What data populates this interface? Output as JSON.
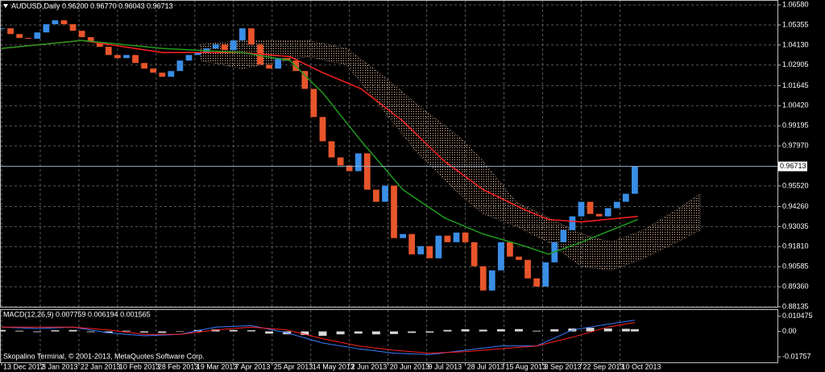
{
  "chart_data": [
    {
      "type": "candlestick",
      "title": "AUDUSD,Daily  0.96200 0.96770 0.96043 0.96713",
      "up_color": "#3a8ee6",
      "down_color": "#e8552b",
      "grid": true,
      "xlim": [
        0,
        261
      ],
      "ylim": [
        0.88135,
        1.0688
      ],
      "x": [
        0,
        3,
        6,
        9,
        12,
        15,
        18,
        21,
        24,
        27,
        30,
        33,
        36,
        39,
        42,
        45,
        48,
        51,
        54,
        57,
        60,
        63,
        66,
        69,
        72,
        75,
        78,
        81,
        84,
        87,
        90,
        93,
        96,
        99,
        102,
        105,
        108,
        111,
        114,
        117,
        120,
        123,
        126,
        129,
        132,
        135,
        138,
        141,
        144,
        147,
        150,
        153,
        156,
        159,
        162,
        165,
        168,
        171,
        174,
        177,
        180,
        183,
        186,
        189,
        192,
        195,
        198,
        201,
        204,
        207,
        210,
        213
      ],
      "close": [
        1.0515,
        1.048,
        1.0456,
        1.0451,
        1.049,
        1.054,
        1.0564,
        1.054,
        1.05,
        1.0461,
        1.0431,
        1.0402,
        1.0352,
        1.0333,
        1.0352,
        1.0303,
        1.0269,
        1.0244,
        1.0219,
        1.0254,
        1.0318,
        1.0352,
        1.0367,
        1.0392,
        1.0416,
        1.0382,
        1.0441,
        1.0515,
        1.0416,
        1.0293,
        1.0269,
        1.0333,
        1.0318,
        1.0254,
        1.0145,
        0.9973,
        0.9825,
        0.9726,
        0.9677,
        0.9642,
        0.9751,
        0.9529,
        0.9455,
        0.9554,
        0.9233,
        0.9258,
        0.9134,
        0.9184,
        0.911,
        0.9248,
        0.9208,
        0.9267,
        0.9208,
        0.9061,
        0.8913,
        0.9036,
        0.9208,
        0.912,
        0.91,
        0.8987,
        0.8937,
        0.9085,
        0.9208,
        0.9282,
        0.9366,
        0.9455,
        0.9381,
        0.9366,
        0.9416,
        0.9455,
        0.9504,
        0.96713
      ],
      "lines": [
        {
          "color": "#ff2020",
          "x": [
            0,
            27,
            54,
            81,
            97,
            108,
            121,
            135,
            149,
            162,
            176,
            184,
            195,
            214
          ],
          "values": [
            1.0392,
            1.0441,
            1.0367,
            1.0367,
            1.0342,
            1.0244,
            1.0145,
            0.9948,
            0.9702,
            0.9529,
            0.9406,
            0.9347,
            0.9332,
            0.9366
          ]
        },
        {
          "color": "#1f9a1f",
          "x": [
            0,
            27,
            54,
            81,
            97,
            108,
            121,
            135,
            149,
            162,
            176,
            184,
            195,
            214
          ],
          "values": [
            1.0392,
            1.0441,
            1.0392,
            1.0367,
            1.0318,
            1.0121,
            0.9825,
            0.9529,
            0.9357,
            0.9258,
            0.9184,
            0.9135,
            0.9208,
            0.9347
          ]
        }
      ],
      "cloud": {
        "color": "#e8b898",
        "x": [
          67,
          81,
          103,
          116,
          127,
          140,
          154,
          162,
          173,
          184,
          195,
          205,
          216,
          227,
          235
        ],
        "upper": [
          1.0416,
          1.0441,
          1.0441,
          1.0392,
          1.0244,
          1.0047,
          0.985,
          0.9702,
          0.9455,
          0.9357,
          0.9258,
          0.9208,
          0.9282,
          0.9406,
          0.9504
        ],
        "lower": [
          1.0318,
          1.0269,
          1.0342,
          1.0293,
          1.0047,
          0.9751,
          0.9504,
          0.9381,
          0.9307,
          0.9208,
          0.9061,
          0.9036,
          0.911,
          0.9208,
          0.9282
        ]
      },
      "current_price": {
        "value": 0.96713,
        "label": "0.96713"
      },
      "yticks": [
        {
          "value": 1.0658,
          "label": "1.06580"
        },
        {
          "value": 1.05355,
          "label": "1.05355"
        },
        {
          "value": 1.0413,
          "label": "1.04130"
        },
        {
          "value": 1.02905,
          "label": "1.02905"
        },
        {
          "value": 1.01645,
          "label": "1.01645"
        },
        {
          "value": 1.0042,
          "label": "1.00420"
        },
        {
          "value": 0.99195,
          "label": "0.99195"
        },
        {
          "value": 0.9797,
          "label": "0.97970"
        },
        {
          "value": 0.9552,
          "label": "0.95520"
        },
        {
          "value": 0.9426,
          "label": "0.94260"
        },
        {
          "value": 0.93035,
          "label": "0.93035"
        },
        {
          "value": 0.9181,
          "label": "0.91810"
        },
        {
          "value": 0.90585,
          "label": "0.90585"
        },
        {
          "value": 0.8936,
          "label": "0.89360"
        },
        {
          "value": 0.88135,
          "label": "0.88135"
        }
      ],
      "xticks": [
        {
          "value": 0,
          "label": "13 Dec 2012"
        },
        {
          "value": 13,
          "label": "3 Jan 2013"
        },
        {
          "value": 26,
          "label": "22 Jan 2013"
        },
        {
          "value": 39,
          "label": "10 Feb 2013"
        },
        {
          "value": 52,
          "label": "28 Feb 2013"
        },
        {
          "value": 65,
          "label": "19 Mar 2013"
        },
        {
          "value": 78,
          "label": "7 Apr 2013"
        },
        {
          "value": 91,
          "label": "25 Apr 2013"
        },
        {
          "value": 104,
          "label": "14 May 2013"
        },
        {
          "value": 117,
          "label": "2 Jun 2013"
        },
        {
          "value": 130,
          "label": "20 Jun 2013"
        },
        {
          "value": 143,
          "label": "9 Jul 2013"
        },
        {
          "value": 156,
          "label": "28 Jul 2013"
        },
        {
          "value": 169,
          "label": "15 Aug 2013"
        },
        {
          "value": 182,
          "label": "3 Sep 2013"
        },
        {
          "value": 195,
          "label": "22 Sep 2013"
        },
        {
          "value": 208,
          "label": "10 Oct 2013"
        }
      ]
    },
    {
      "type": "macd",
      "title": "MACD(12,26,9) 0.007759 0.006194 0.001565",
      "ylim": [
        -0.02135,
        0.01479
      ],
      "yticks": [
        {
          "value": 0.010475,
          "label": "0.010475"
        },
        {
          "value": 0,
          "label": "0.00"
        },
        {
          "value": -0.01757,
          "label": "-0.01757"
        }
      ],
      "histogram": {
        "color": "#d8d8d8",
        "x": [
          0,
          6,
          12,
          18,
          24,
          30,
          36,
          42,
          48,
          54,
          60,
          66,
          72,
          78,
          84,
          90,
          96,
          102,
          108,
          114,
          120,
          126,
          132,
          138,
          144,
          150,
          156,
          162,
          168,
          174,
          180,
          186,
          192,
          198,
          204,
          210,
          213
        ],
        "values": [
          0.001,
          0.0005,
          -0.0005,
          0.0008,
          0.001,
          -0.0005,
          -0.001,
          0.0005,
          -0.0008,
          -0.001,
          0.0003,
          0.001,
          0.0015,
          0.001,
          0.0008,
          -0.0015,
          -0.002,
          -0.0025,
          -0.003,
          -0.002,
          -0.0015,
          -0.002,
          -0.0018,
          -0.001,
          -0.0008,
          0.001,
          0.0015,
          0.0012,
          0.0015,
          0.0016,
          0.0005,
          0.0015,
          0.002,
          0.0025,
          0.002,
          0.0018,
          0.001565
        ]
      },
      "lines": [
        {
          "color": "#3a7bff",
          "x": [
            0,
            12,
            24,
            36,
            48,
            60,
            72,
            84,
            96,
            108,
            120,
            132,
            144,
            156,
            168,
            180,
            192,
            204,
            213
          ],
          "values": [
            0.003,
            0.002,
            0.003,
            -0.001,
            -0.003,
            -0.002,
            0.003,
            0.004,
            -0.001,
            -0.008,
            -0.012,
            -0.015,
            -0.016,
            -0.013,
            -0.01,
            -0.01,
            0.001,
            0.005,
            0.007759
          ]
        },
        {
          "color": "#ff2020",
          "x": [
            0,
            12,
            24,
            36,
            48,
            60,
            72,
            84,
            96,
            108,
            120,
            132,
            144,
            156,
            168,
            180,
            192,
            204,
            213
          ],
          "values": [
            0.003,
            0.003,
            0.003,
            0.001,
            -0.002,
            -0.002,
            0.001,
            0.003,
            0.001,
            -0.005,
            -0.01,
            -0.013,
            -0.015,
            -0.014,
            -0.012,
            -0.01,
            -0.004,
            0.003,
            0.006194
          ]
        }
      ],
      "footer": "Skopalino Terminal, © 2001-2013, MetaQuotes Software Corp."
    }
  ]
}
